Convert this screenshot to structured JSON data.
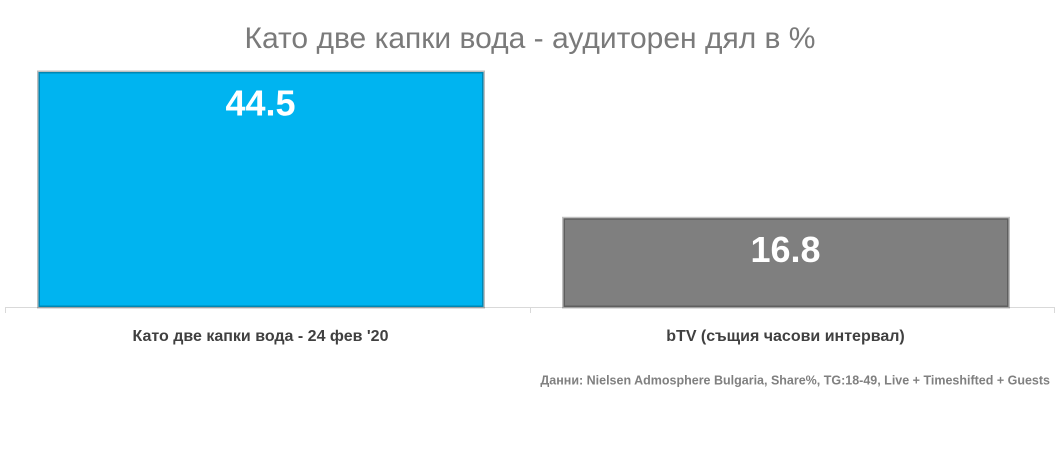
{
  "chart_data": {
    "type": "bar",
    "title": "Като две капки вода - аудиторен дял в %",
    "categories": [
      "Като две капки вода - 24 фев '20",
      "bTV (същия часови интервал)"
    ],
    "values": [
      44.5,
      16.8
    ],
    "colors": [
      "#00b4f0",
      "#7f7f7f"
    ],
    "source": "Данни: Nielsen Admosphere Bulgaria, Share%, TG:18-49, Live + Timeshifted + Guests"
  }
}
